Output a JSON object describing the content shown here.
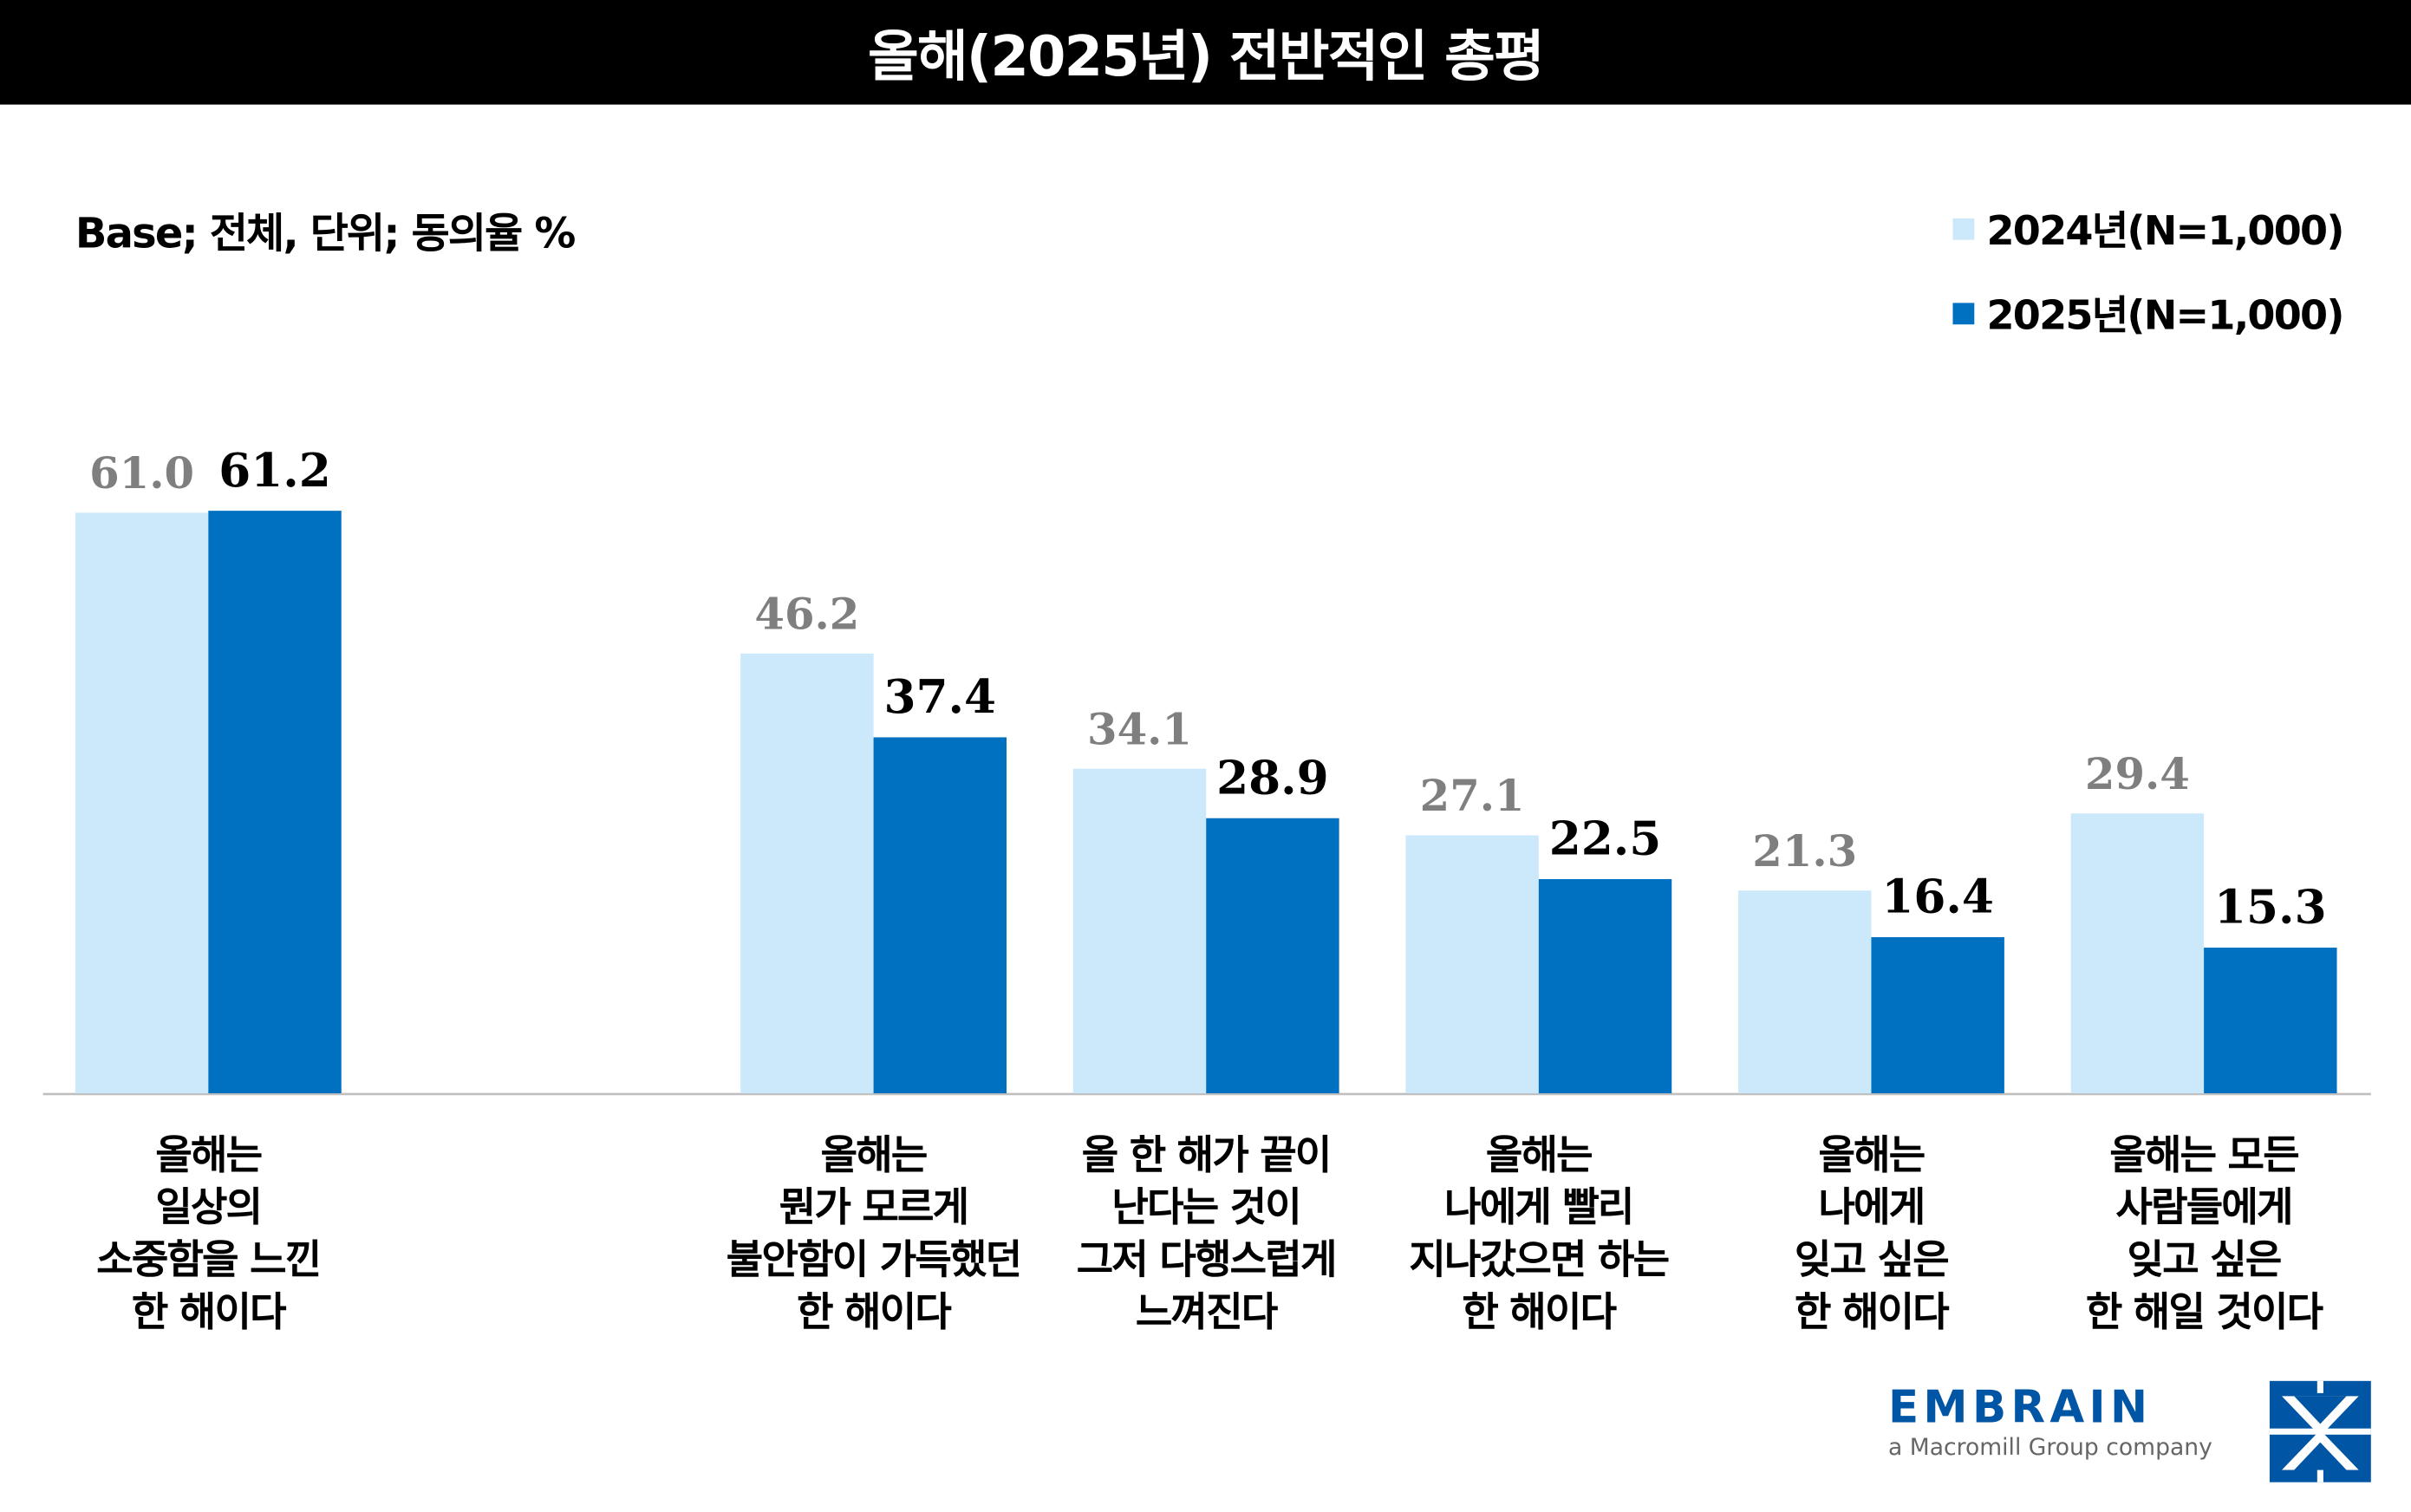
{
  "title": "올해(2025년) 전반적인 총평",
  "base_note": "Base; 전체, 단위; 동의율 %",
  "logo": {
    "word": "EMBRAIN",
    "tagline": "a Macromill Group company"
  },
  "chart_data": {
    "type": "bar",
    "title": "올해(2025년) 전반적인 총평",
    "ylabel": "",
    "xlabel": "",
    "ylim": [
      0,
      65
    ],
    "grid": false,
    "legend_placement": "top-right",
    "categories": [
      "올해는\n일상의\n소중함을 느낀\n한 해이다",
      "올해는\n뭔가 모르게\n불안함이 가득했던\n한 해이다",
      "올 한 해가 끝이\n난다는 것이\n그저 다행스럽게\n느껴진다",
      "올해는\n나에게 빨리\n지나갔으면 하는\n한 해이다",
      "올해는\n나에게\n잊고 싶은\n한 해이다",
      "올해는 모든\n사람들에게\n잊고 싶은\n한 해일 것이다"
    ],
    "series": [
      {
        "name": "2024년(N=1,000)",
        "color": "#cce9fb",
        "label_color": "#7f7f7f",
        "values": [
          61.0,
          46.2,
          34.1,
          27.1,
          21.3,
          29.4
        ]
      },
      {
        "name": "2025년(N=1,000)",
        "color": "#0070c0",
        "label_color": "#000000",
        "values": [
          61.2,
          37.4,
          28.9,
          22.5,
          16.4,
          15.3
        ]
      }
    ],
    "value_labels": [
      [
        "61.0",
        "46.2",
        "34.1",
        "27.1",
        "21.3",
        "29.4"
      ],
      [
        "61.2",
        "37.4",
        "28.9",
        "22.5",
        "16.4",
        "15.3"
      ]
    ]
  }
}
